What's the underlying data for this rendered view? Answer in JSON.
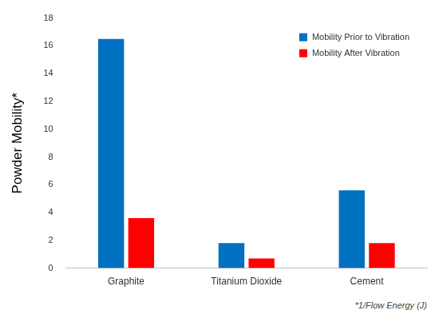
{
  "chart_data": {
    "type": "bar",
    "y_label": "Powder Mobility*",
    "annotations": [
      "*1/Flow Energy (J)"
    ],
    "categories": [
      "Graphite",
      "Titanium Dioxide",
      "Cement"
    ],
    "series": [
      {
        "name": "Mobility Prior to Vibration",
        "color": "#0070c0",
        "values": [
          16.5,
          1.8,
          5.6
        ]
      },
      {
        "name": "Mobility After Vibration",
        "color": "#ff0000",
        "values": [
          3.6,
          0.7,
          1.8
        ]
      }
    ],
    "ylim": [
      0,
      18
    ],
    "yticks": [
      0,
      2,
      4,
      6,
      8,
      10,
      12,
      14,
      16,
      18
    ],
    "grid": false,
    "legend": "upper right"
  }
}
